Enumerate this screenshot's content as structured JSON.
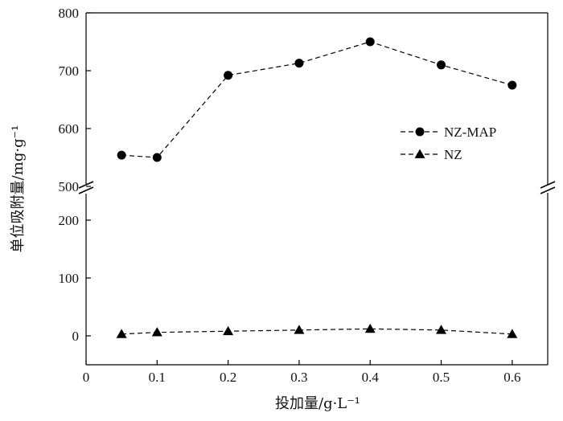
{
  "chart_data": {
    "type": "line",
    "title": "",
    "xlabel": "投加量/g·L⁻¹",
    "ylabel": "单位吸附量/mg·g⁻¹",
    "x": [
      0.05,
      0.1,
      0.2,
      0.3,
      0.4,
      0.5,
      0.6
    ],
    "xlim": [
      0,
      0.65
    ],
    "xticks": [
      "0",
      "0.1",
      "0.2",
      "0.3",
      "0.4",
      "0.5",
      "0.6"
    ],
    "y_axis_break": true,
    "ylim_lower": [
      -50,
      250
    ],
    "ylim_upper": [
      500,
      800
    ],
    "yticks_lower": [
      "0",
      "100",
      "200"
    ],
    "yticks_upper": [
      "500",
      "600",
      "700",
      "800"
    ],
    "grid": false,
    "legend_position": "right",
    "series": [
      {
        "name": "NZ-MAP",
        "marker": "circle",
        "line_style": "dashed",
        "values": [
          554,
          550,
          692,
          713,
          750,
          710,
          675
        ]
      },
      {
        "name": "NZ",
        "marker": "triangle",
        "line_style": "dashed",
        "values": [
          3,
          6,
          8,
          10,
          12,
          10,
          3
        ]
      }
    ],
    "colors": {
      "line": "#000000",
      "marker": "#000000"
    }
  }
}
